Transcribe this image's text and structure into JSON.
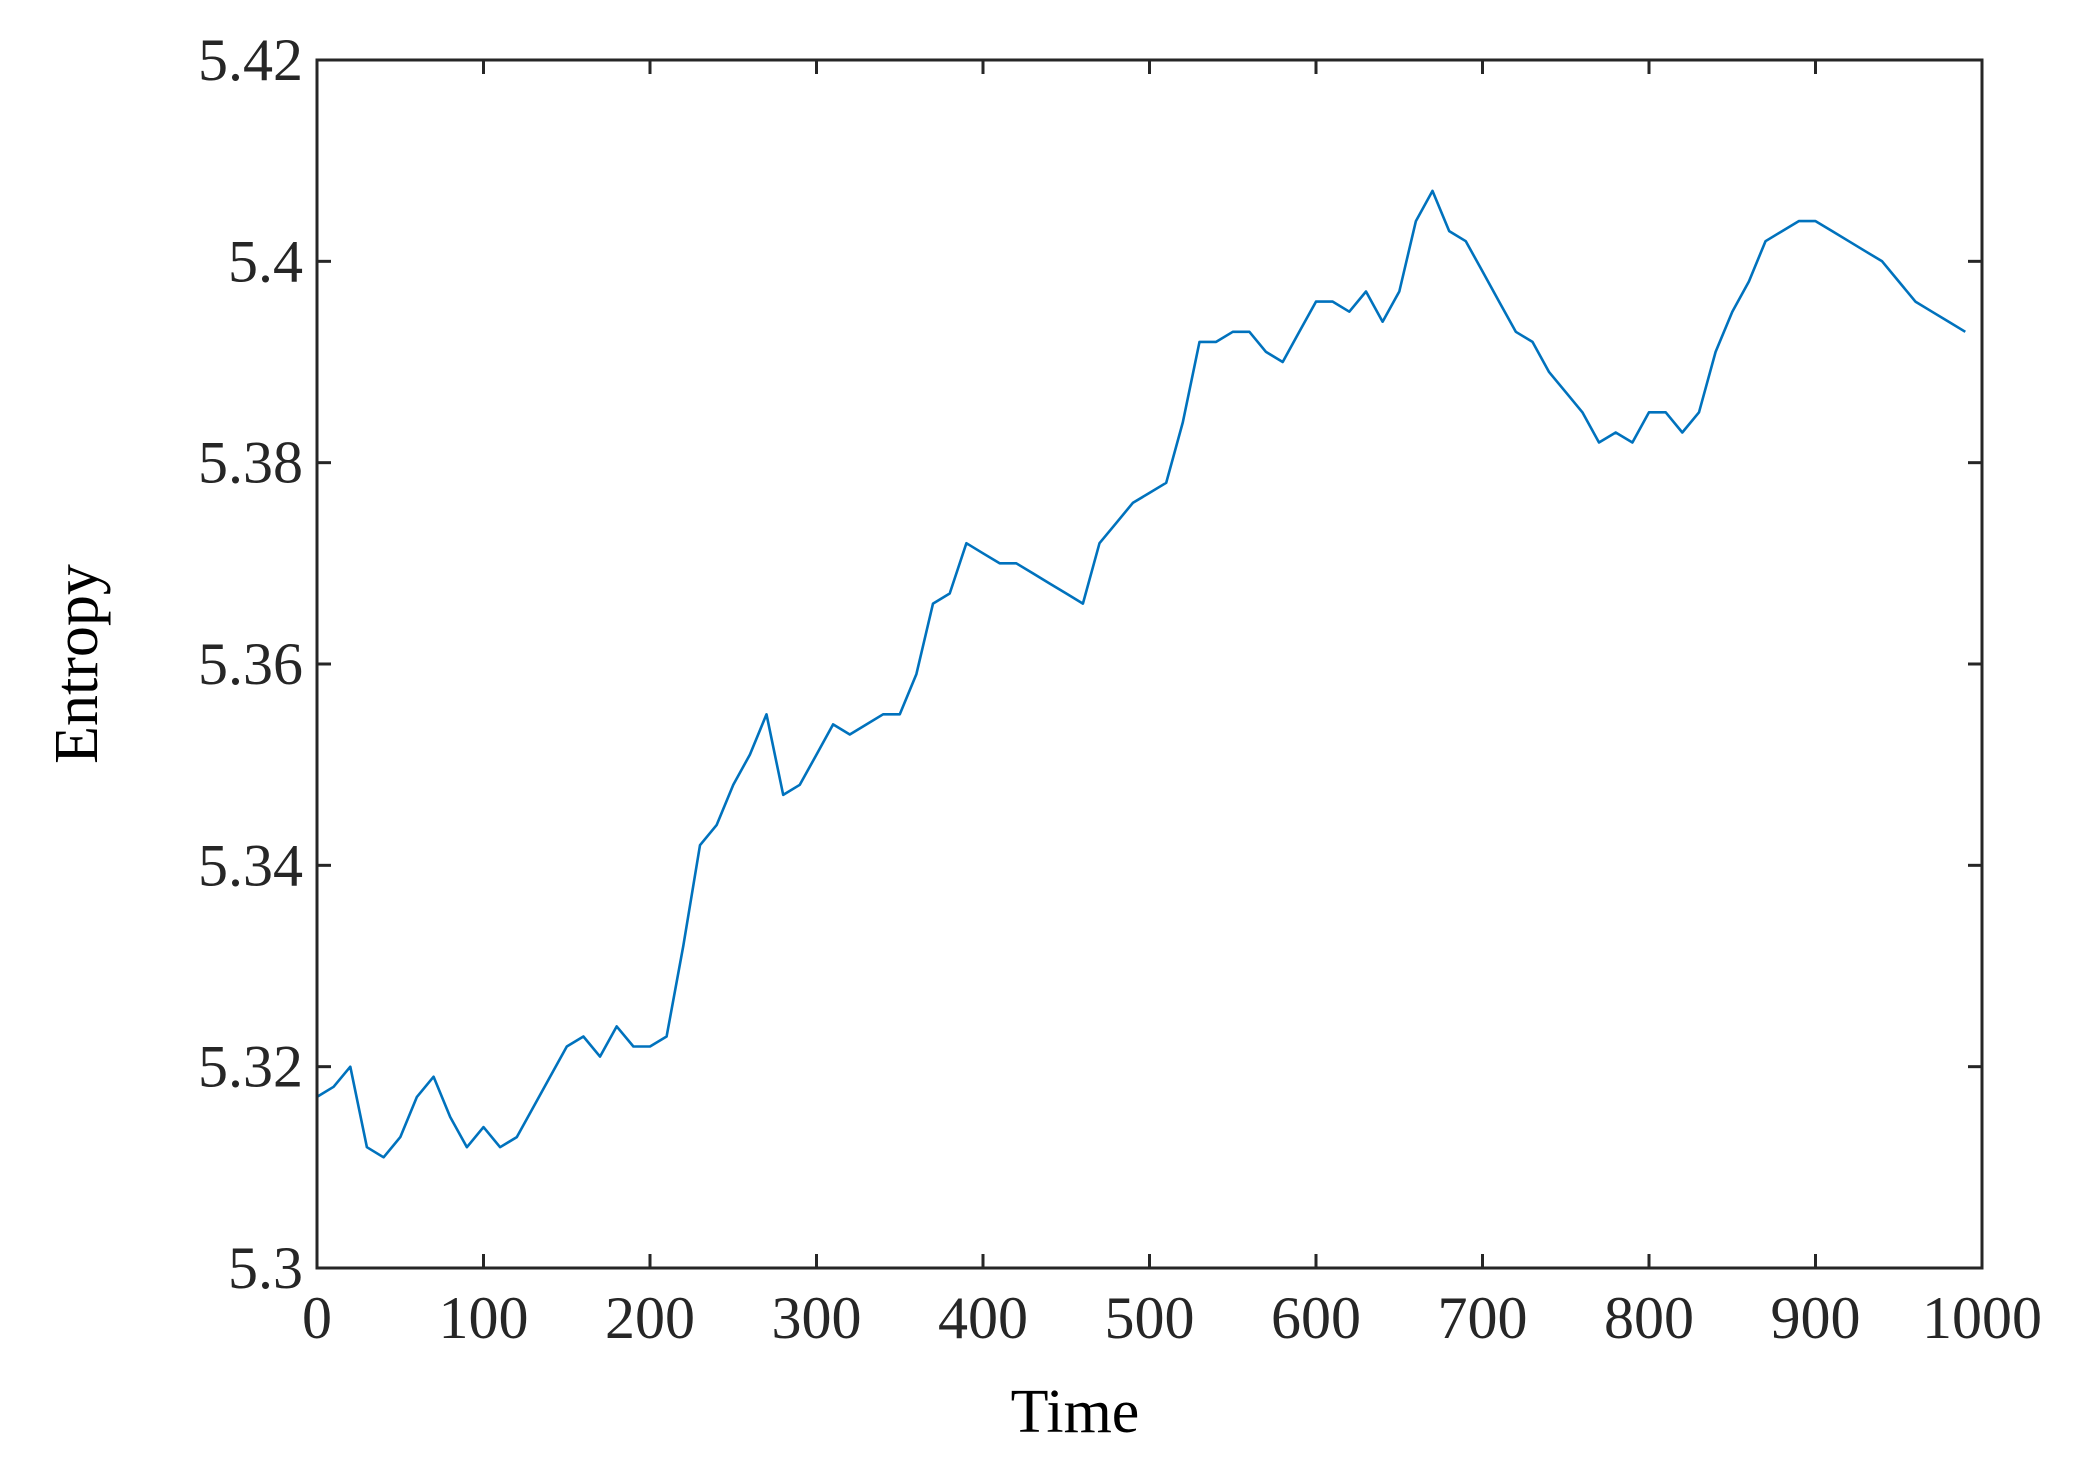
{
  "chart_data": {
    "type": "line",
    "title": "",
    "xlabel": "Time",
    "ylabel": "Entropy",
    "xlim": [
      0,
      1000
    ],
    "ylim": [
      5.3,
      5.42
    ],
    "xticks": [
      0,
      100,
      200,
      300,
      400,
      500,
      600,
      700,
      800,
      900,
      1000
    ],
    "xtick_labels": [
      "0",
      "100",
      "200",
      "300",
      "400",
      "500",
      "600",
      "700",
      "800",
      "900",
      "1000"
    ],
    "yticks": [
      5.3,
      5.32,
      5.34,
      5.36,
      5.38,
      5.4,
      5.42
    ],
    "ytick_labels": [
      "5.3",
      "5.32",
      "5.34",
      "5.36",
      "5.38",
      "5.4",
      "5.42"
    ],
    "grid": false,
    "legend": "none",
    "colors": {
      "series": "#0072BD",
      "axis": "#262626"
    },
    "series": [
      {
        "x": [
          0,
          10,
          20,
          30,
          40,
          50,
          60,
          70,
          80,
          90,
          100,
          110,
          120,
          130,
          140,
          150,
          160,
          170,
          180,
          190,
          200,
          210,
          220,
          230,
          240,
          250,
          260,
          270,
          280,
          290,
          300,
          310,
          320,
          330,
          340,
          350,
          360,
          370,
          380,
          390,
          400,
          410,
          420,
          430,
          440,
          450,
          460,
          470,
          480,
          490,
          500,
          510,
          520,
          530,
          540,
          550,
          560,
          570,
          580,
          590,
          600,
          610,
          620,
          630,
          640,
          650,
          660,
          670,
          680,
          690,
          700,
          710,
          720,
          730,
          740,
          750,
          760,
          770,
          780,
          790,
          800,
          810,
          820,
          830,
          840,
          850,
          860,
          870,
          880,
          890,
          900,
          910,
          920,
          930,
          940,
          950,
          960,
          970,
          980,
          990
        ],
        "values": [
          5.317,
          5.318,
          5.32,
          5.312,
          5.311,
          5.313,
          5.317,
          5.319,
          5.315,
          5.312,
          5.314,
          5.312,
          5.313,
          5.316,
          5.319,
          5.322,
          5.323,
          5.321,
          5.324,
          5.322,
          5.322,
          5.323,
          5.332,
          5.342,
          5.344,
          5.348,
          5.351,
          5.355,
          5.347,
          5.348,
          5.351,
          5.354,
          5.353,
          5.354,
          5.355,
          5.355,
          5.359,
          5.366,
          5.367,
          5.372,
          5.371,
          5.37,
          5.37,
          5.369,
          5.368,
          5.367,
          5.366,
          5.372,
          5.374,
          5.376,
          5.377,
          5.378,
          5.384,
          5.392,
          5.392,
          5.393,
          5.393,
          5.391,
          5.39,
          5.393,
          5.396,
          5.396,
          5.395,
          5.397,
          5.394,
          5.397,
          5.404,
          5.407,
          5.403,
          5.402,
          5.399,
          5.396,
          5.393,
          5.392,
          5.389,
          5.387,
          5.385,
          5.382,
          5.383,
          5.382,
          5.385,
          5.385,
          5.383,
          5.385,
          5.391,
          5.395,
          5.398,
          5.402,
          5.403,
          5.404,
          5.404,
          5.403,
          5.402,
          5.401,
          5.4,
          5.398,
          5.396,
          5.395,
          5.394,
          5.393
        ]
      }
    ]
  }
}
